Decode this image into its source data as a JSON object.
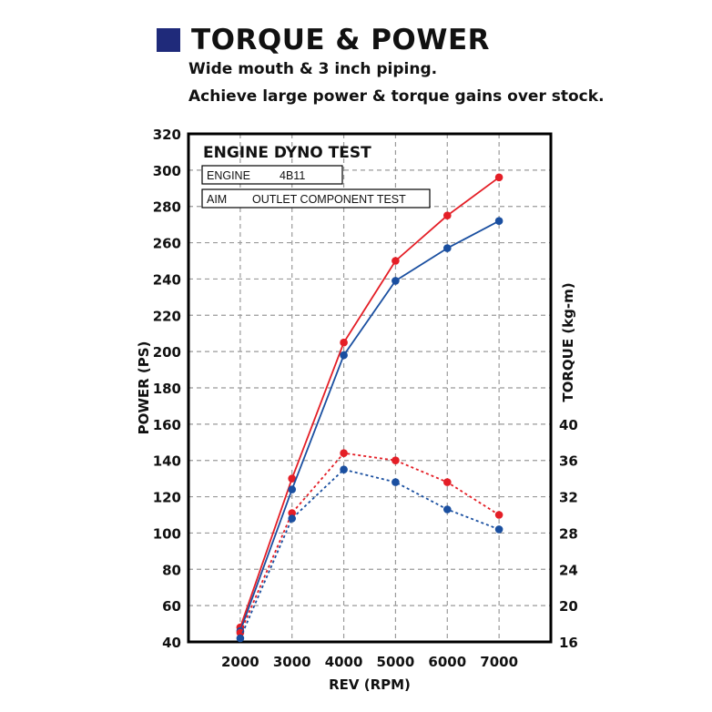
{
  "header": {
    "title": "TORQUE & POWER",
    "lines": [
      "Wide mouth & 3 inch piping.",
      "Achieve large power & torque gains over stock."
    ]
  },
  "colors": {
    "accent_square": "#1f2a7a",
    "aftermarket": "#e41e26",
    "stock": "#1a4fa0",
    "grid": "#9a9a9a",
    "frame": "#000000"
  },
  "chart_data": {
    "type": "line",
    "title": "ENGINE DYNO TEST",
    "info_rows": [
      {
        "label": "ENGINE",
        "value": "4B11"
      },
      {
        "label": "AIM",
        "value": "OUTLET COMPONENT TEST"
      }
    ],
    "xlabel": "REV (RPM)",
    "ylabel": "POWER (PS)",
    "y2label": "TORQUE (kg-m)",
    "x": [
      2000,
      3000,
      4000,
      5000,
      6000,
      7000
    ],
    "x_ticks": [
      2000,
      3000,
      4000,
      5000,
      6000,
      7000
    ],
    "xlim": [
      1000,
      8000
    ],
    "ylim": [
      40,
      320
    ],
    "y_ticks": [
      40,
      60,
      80,
      100,
      120,
      140,
      160,
      180,
      200,
      220,
      240,
      260,
      280,
      300,
      320
    ],
    "y2lim": [
      16,
      72
    ],
    "y2_ticks": [
      16,
      20,
      24,
      28,
      32,
      36,
      40
    ],
    "grid": true,
    "series": [
      {
        "axis": "left",
        "style": "solid",
        "color": "#e41e26",
        "values": [
          48,
          130,
          205,
          250,
          275,
          296
        ]
      },
      {
        "axis": "left",
        "style": "solid",
        "color": "#1a4fa0",
        "values": [
          46,
          124,
          198,
          239,
          257,
          272
        ]
      },
      {
        "axis": "right",
        "style": "dotted",
        "color": "#e41e26",
        "values": [
          17.0,
          30.2,
          36.8,
          36.0,
          33.6,
          30.0
        ]
      },
      {
        "axis": "right",
        "style": "dotted",
        "color": "#1a4fa0",
        "values": [
          16.4,
          29.6,
          35.0,
          33.6,
          30.6,
          28.4
        ]
      }
    ]
  }
}
